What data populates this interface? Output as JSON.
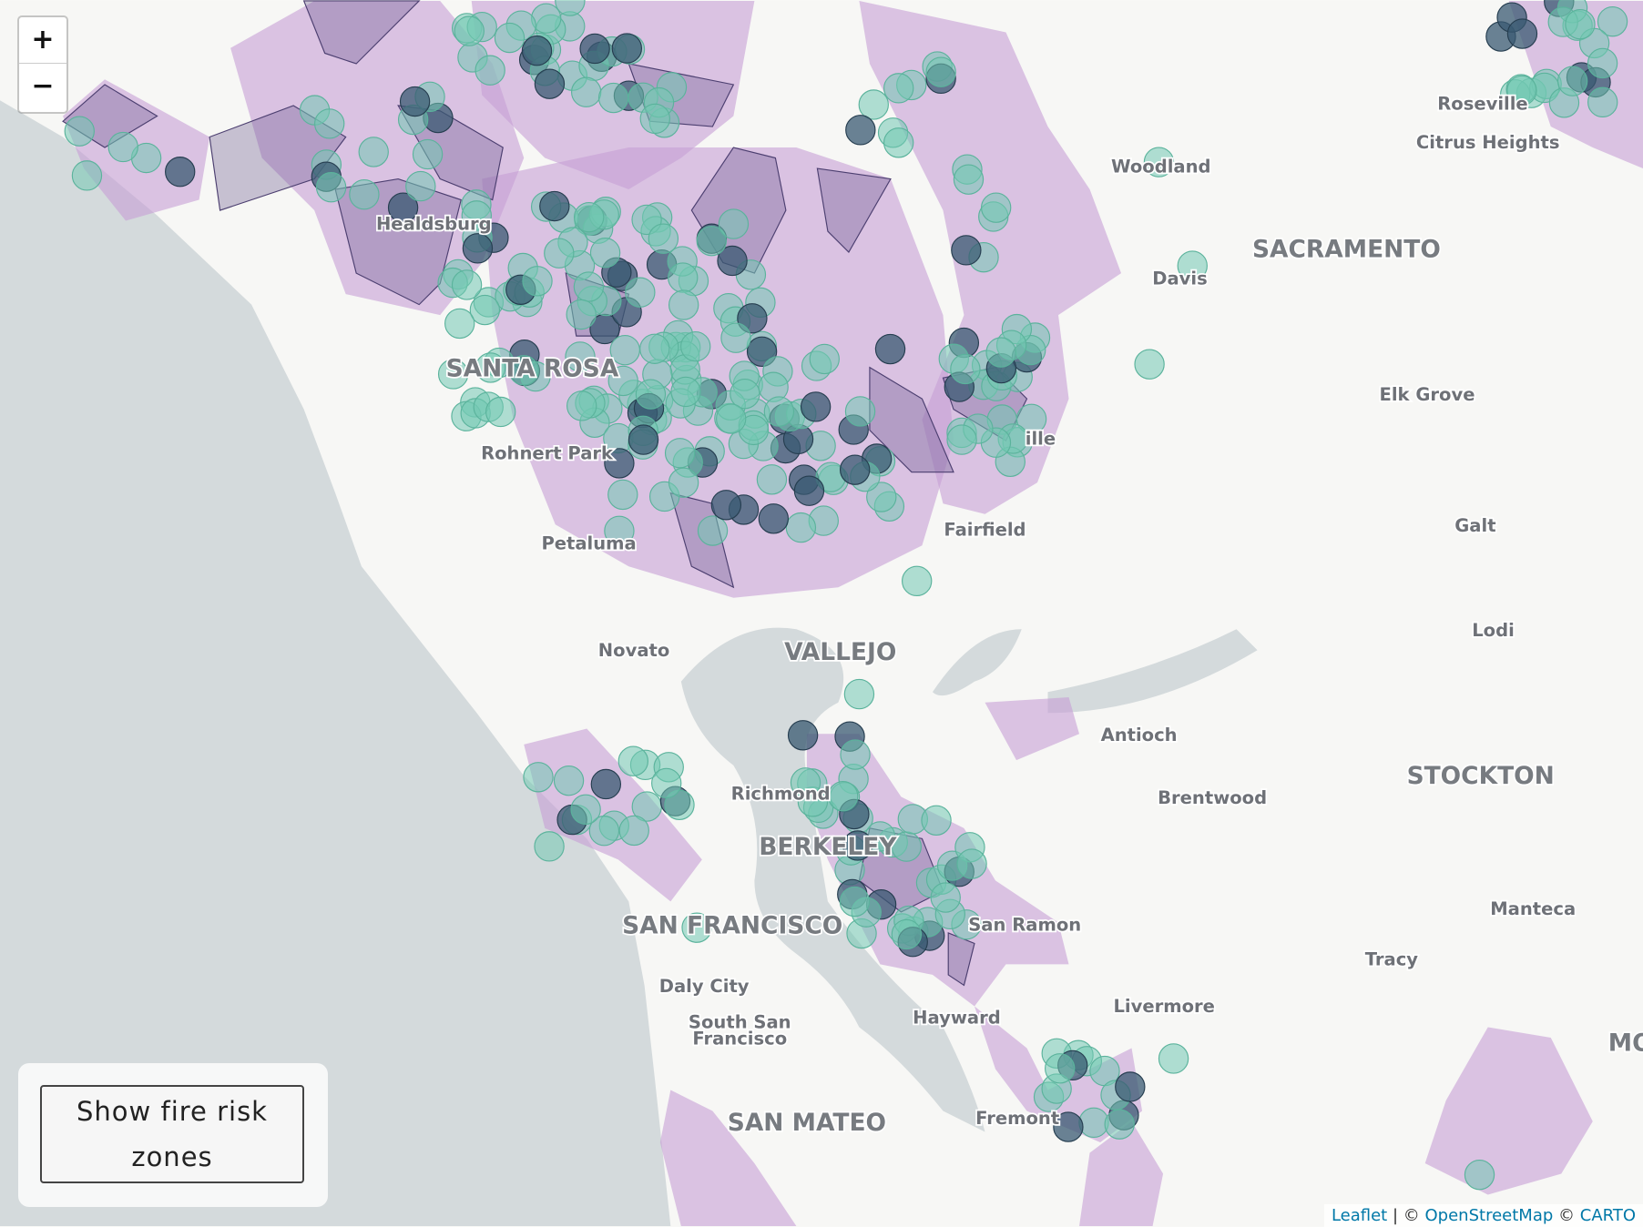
{
  "map": {
    "zoom_in": "+",
    "zoom_out": "−",
    "places": [
      "Roseville",
      "Citrus Heights",
      "Woodland",
      "SACRAMENTO",
      "Davis",
      "Healdsburg",
      "SANTA ROSA",
      "Elk Grove",
      "Rohnert Park",
      "ille",
      "Galt",
      "Petaluma",
      "Fairfield",
      "Lodi",
      "Novato",
      "VALLEJO",
      "Antioch",
      "STOCKTON",
      "Richmond",
      "Brentwood",
      "BERKELEY",
      "San Ramon",
      "SAN FRANCISCO",
      "Manteca",
      "Tracy",
      "Daly City",
      "Livermore",
      "South San",
      "Francisco",
      "Hayward",
      "MO",
      "SAN MATEO",
      "Fremont"
    ],
    "button": "Show fire risk zones",
    "attribution": {
      "leaflet": "Leaflet",
      "sep1": "| ©",
      "osm": "OpenStreetMap",
      "sep2": "©",
      "carto": "CARTO"
    }
  }
}
